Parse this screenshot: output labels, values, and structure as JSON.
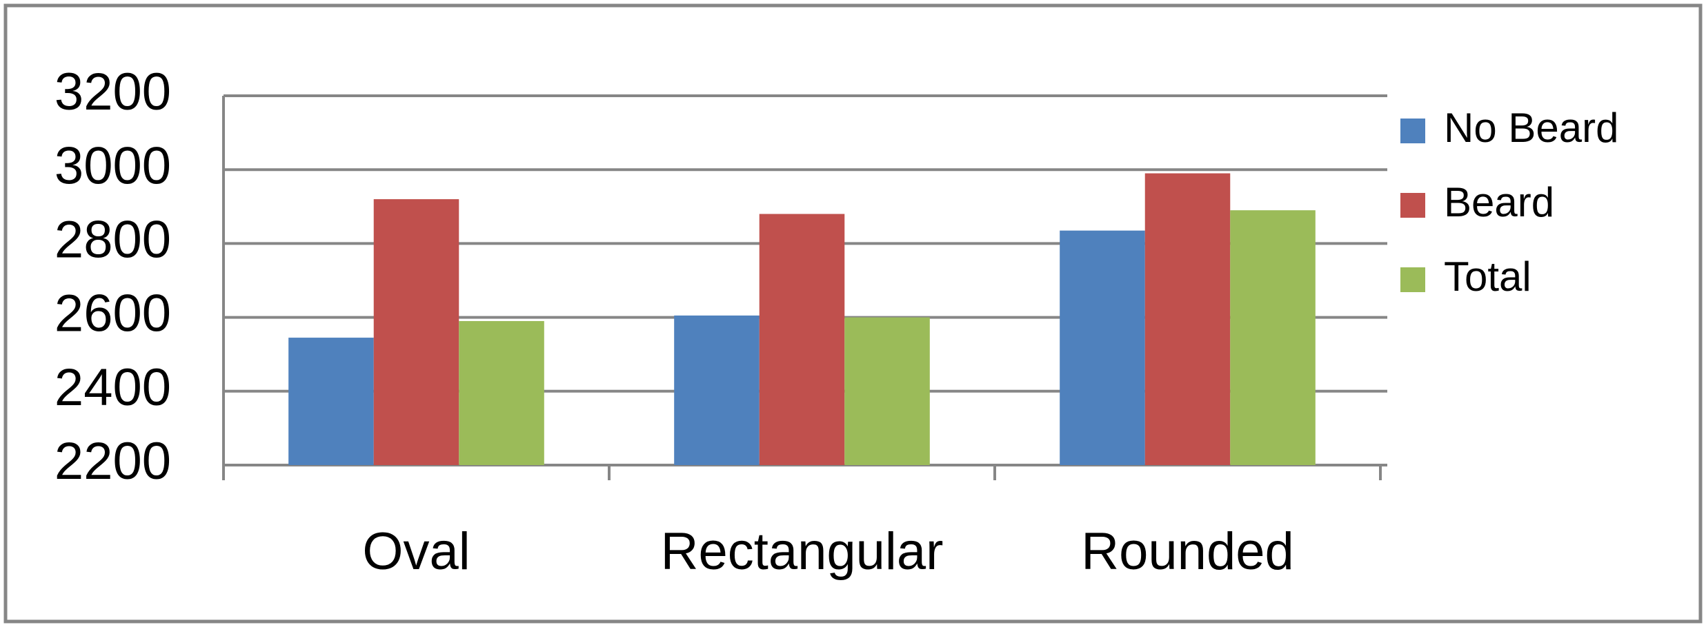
{
  "chart_data": {
    "type": "bar",
    "categories": [
      "Oval",
      "Rectangular",
      "Rounded"
    ],
    "series": [
      {
        "name": "No Beard",
        "color": "#4f81bd",
        "values": [
          2545,
          2605,
          2835
        ]
      },
      {
        "name": "Beard",
        "color": "#c0504d",
        "values": [
          2920,
          2880,
          2990
        ]
      },
      {
        "name": "Total",
        "color": "#9bbb59",
        "values": [
          2590,
          2600,
          2890
        ]
      }
    ],
    "ylim": [
      2200,
      3200
    ],
    "yticks": [
      2200,
      2400,
      2600,
      2800,
      3000,
      3200
    ],
    "grid": true,
    "legend": "right"
  }
}
